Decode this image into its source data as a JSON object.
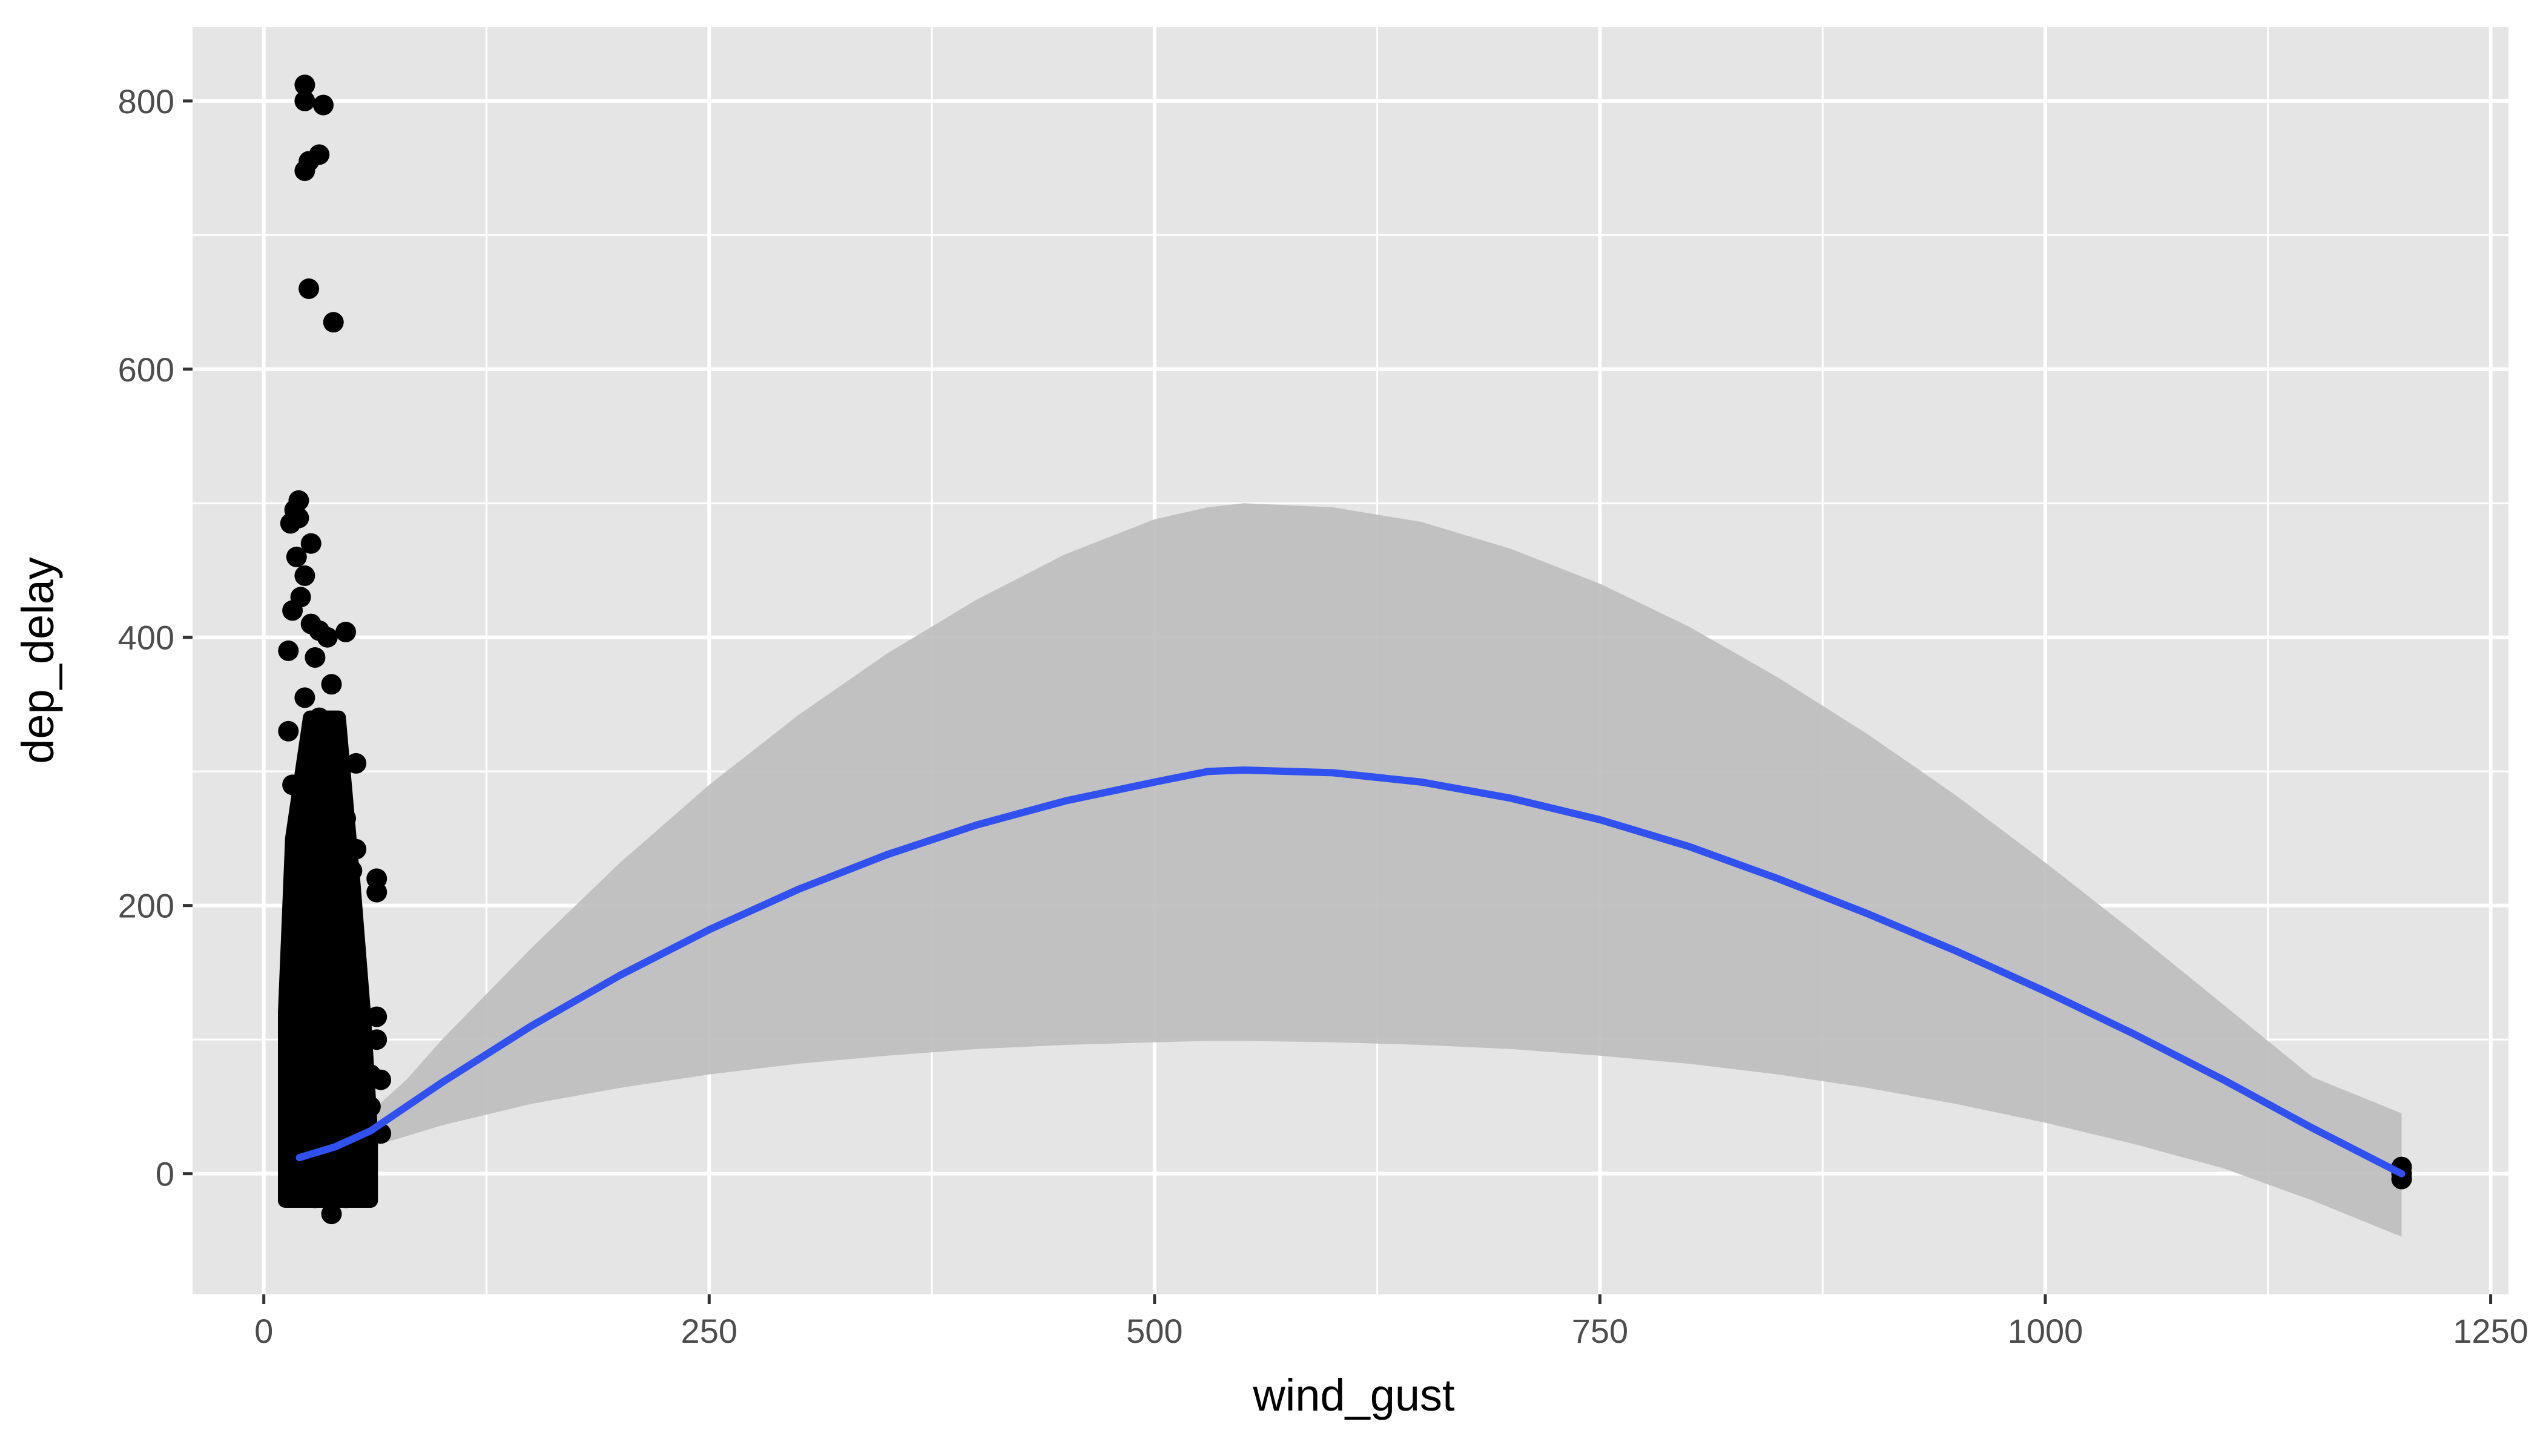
{
  "chart_data": {
    "type": "scatter",
    "title": "",
    "xlabel": "wind_gust",
    "ylabel": "dep_delay",
    "xlim": [
      -40,
      1260
    ],
    "ylim": [
      -90,
      855
    ],
    "x_ticks": [
      0,
      250,
      500,
      750,
      1000,
      1250
    ],
    "y_ticks": [
      0,
      200,
      400,
      600,
      800
    ],
    "x_tick_labels": [
      "0",
      "250",
      "500",
      "750",
      "1000",
      "1250"
    ],
    "y_tick_labels": [
      "0",
      "200",
      "400",
      "600",
      "800"
    ],
    "grid": true,
    "legend": "none",
    "colors": {
      "panel": "#e5e5e5",
      "grid": "#ffffff",
      "points": "#000000",
      "smooth_line": "#3050f0",
      "confidence_band": "#bdbdbd"
    },
    "points": [
      [
        23.0,
        812
      ],
      [
        23.0,
        800
      ],
      [
        33.4,
        797
      ],
      [
        31.1,
        760
      ],
      [
        25.3,
        755
      ],
      [
        23.0,
        748
      ],
      [
        25.3,
        660
      ],
      [
        39.1,
        635
      ],
      [
        19.6,
        502
      ],
      [
        17.3,
        495
      ],
      [
        19.6,
        489
      ],
      [
        15.0,
        485
      ],
      [
        26.5,
        470
      ],
      [
        18.4,
        460
      ],
      [
        23.0,
        446
      ],
      [
        20.7,
        430
      ],
      [
        16.1,
        420
      ],
      [
        26.5,
        410
      ],
      [
        31.1,
        405
      ],
      [
        46.0,
        404
      ],
      [
        35.7,
        400
      ],
      [
        13.8,
        390
      ],
      [
        28.8,
        385
      ],
      [
        38.0,
        365
      ],
      [
        23.0,
        355
      ],
      [
        31.1,
        340
      ],
      [
        13.8,
        330
      ],
      [
        35.7,
        320
      ],
      [
        40.3,
        312
      ],
      [
        26.5,
        300
      ],
      [
        51.8,
        306
      ],
      [
        16.1,
        290
      ],
      [
        43.7,
        280
      ],
      [
        31.1,
        270
      ],
      [
        46.0,
        265
      ],
      [
        20.7,
        258
      ],
      [
        51.8,
        242
      ],
      [
        35.7,
        235
      ],
      [
        49.5,
        226
      ],
      [
        63.4,
        220
      ],
      [
        63.4,
        210
      ],
      [
        28.8,
        205
      ],
      [
        41.4,
        195
      ],
      [
        16.1,
        185
      ],
      [
        46.0,
        170
      ],
      [
        33.4,
        160
      ],
      [
        20.7,
        150
      ],
      [
        41.4,
        140
      ],
      [
        46.0,
        130
      ],
      [
        28.8,
        125
      ],
      [
        63.4,
        117
      ],
      [
        16.1,
        110
      ],
      [
        63.4,
        100
      ],
      [
        51.8,
        95
      ],
      [
        38.0,
        90
      ],
      [
        23.0,
        80
      ],
      [
        59.9,
        74
      ],
      [
        65.7,
        70
      ],
      [
        46.0,
        65
      ],
      [
        16.1,
        60
      ],
      [
        31.1,
        55
      ],
      [
        59.9,
        50
      ],
      [
        41.4,
        45
      ],
      [
        20.7,
        40
      ],
      [
        49.5,
        35
      ],
      [
        65.7,
        30
      ],
      [
        28.8,
        25
      ],
      [
        16.1,
        20
      ],
      [
        38.0,
        15
      ],
      [
        23.0,
        10
      ],
      [
        46.0,
        5
      ],
      [
        16.1,
        0
      ],
      [
        31.1,
        -5
      ],
      [
        55.3,
        -8
      ],
      [
        20.7,
        -10
      ],
      [
        38.0,
        -12
      ],
      [
        16.1,
        -15
      ],
      [
        28.8,
        -18
      ],
      [
        46.0,
        -18
      ],
      [
        38.0,
        -30
      ],
      [
        1200,
        5
      ],
      [
        1200,
        0
      ],
      [
        1200,
        -4
      ]
    ],
    "dense_cluster": {
      "x_min": 12,
      "x_max": 60,
      "y_min": -20,
      "y_max": 340
    },
    "smooth_line": {
      "x": [
        20,
        40,
        60,
        80,
        100,
        150,
        200,
        250,
        300,
        350,
        400,
        450,
        500,
        530,
        550,
        600,
        650,
        700,
        750,
        800,
        850,
        900,
        950,
        1000,
        1050,
        1100,
        1150,
        1200
      ],
      "y": [
        12,
        20,
        32,
        50,
        68,
        110,
        148,
        182,
        212,
        238,
        260,
        278,
        292,
        300,
        301,
        299,
        292,
        280,
        264,
        244,
        220,
        194,
        166,
        136,
        104,
        70,
        34,
        0
      ]
    },
    "confidence_band": {
      "x": [
        20,
        40,
        60,
        80,
        100,
        150,
        200,
        250,
        300,
        350,
        400,
        450,
        500,
        530,
        550,
        600,
        650,
        700,
        750,
        800,
        850,
        900,
        950,
        1000,
        1050,
        1100,
        1150,
        1200
      ],
      "lower": [
        6,
        12,
        20,
        28,
        36,
        52,
        64,
        74,
        82,
        88,
        93,
        96,
        98,
        99,
        99,
        98,
        96,
        93,
        88,
        82,
        74,
        64,
        52,
        38,
        22,
        4,
        -20,
        -47
      ],
      "upper": [
        18,
        30,
        46,
        70,
        100,
        168,
        232,
        290,
        342,
        388,
        428,
        462,
        488,
        497,
        500,
        497,
        486,
        466,
        440,
        408,
        370,
        328,
        282,
        232,
        180,
        126,
        72,
        45
      ]
    }
  }
}
